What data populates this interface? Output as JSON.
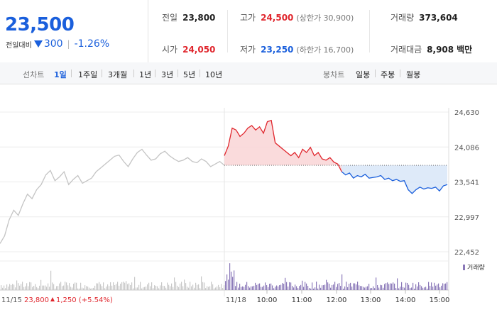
{
  "price": {
    "current": "23,500",
    "change_label": "전일대비",
    "change_amount": "300",
    "change_percent": "-1.26%",
    "direction": "down"
  },
  "stats": {
    "prev_close": {
      "label": "전일",
      "value": "23,800"
    },
    "high": {
      "label": "고가",
      "value": "24,500",
      "sub": "(상한가 30,900)"
    },
    "volume": {
      "label": "거래량",
      "value": "373,604"
    },
    "open": {
      "label": "시가",
      "value": "24,050"
    },
    "low": {
      "label": "저가",
      "value": "23,250",
      "sub": "(하한가 16,700)"
    },
    "trade_amount": {
      "label": "거래대금",
      "value": "8,908",
      "unit": "백만"
    }
  },
  "toolbar": {
    "line_chart_label": "선차트",
    "line_periods": [
      "1일",
      "1주일",
      "3개월",
      "1년",
      "3년",
      "5년",
      "10년"
    ],
    "active_period": "1일",
    "candle_chart_label": "봉차트",
    "candle_periods": [
      "일봉",
      "주봉",
      "월봉"
    ]
  },
  "colors": {
    "up": "#e0262d",
    "down": "#1a5fdc",
    "prev_day": "#c4c4c4",
    "volume_today": "#8a78b8",
    "volume_prev": "#c8c8c8"
  },
  "chart_data": {
    "type": "line",
    "y_ticks": [
      "24,630",
      "24,086",
      "23,541",
      "22,997",
      "22,452"
    ],
    "ylim": [
      22452,
      24630
    ],
    "prev_day_label": "11/15",
    "prev_day_close_text": "23,800",
    "prev_day_change_text": "1,250",
    "prev_day_change_pct": "(+5.54%)",
    "today_label": "11/18",
    "x_ticks": [
      "10:00",
      "11:00",
      "12:00",
      "13:00",
      "14:00",
      "15:00"
    ],
    "baseline_value": 23800,
    "volume_legend": "거래량",
    "series": [
      {
        "day": "11/15",
        "values": [
          22580,
          22700,
          22950,
          23100,
          23020,
          23200,
          23350,
          23280,
          23420,
          23500,
          23650,
          23720,
          23560,
          23620,
          23700,
          23500,
          23580,
          23640,
          23520,
          23560,
          23600,
          23700,
          23760,
          23820,
          23880,
          23940,
          23960,
          23860,
          23780,
          23900,
          24000,
          24050,
          23960,
          23880,
          23900,
          23980,
          24020,
          23950,
          23900,
          23860,
          23880,
          23920,
          23860,
          23840,
          23900,
          23860,
          23780,
          23820,
          23860,
          23800
        ]
      },
      {
        "day": "11/18",
        "values": [
          23950,
          24100,
          24380,
          24350,
          24250,
          24300,
          24380,
          24420,
          24350,
          24400,
          24300,
          24480,
          24500,
          24150,
          24100,
          24050,
          24000,
          23950,
          24000,
          23920,
          24050,
          24000,
          24080,
          23950,
          24000,
          23900,
          23880,
          23920,
          23850,
          23820,
          23700,
          23650,
          23680,
          23600,
          23640,
          23620,
          23660,
          23600,
          23610,
          23620,
          23640,
          23580,
          23600,
          23560,
          23580,
          23550,
          23560,
          23420,
          23360,
          23420,
          23460,
          23430,
          23450,
          23440,
          23460,
          23400,
          23480,
          23500
        ]
      }
    ]
  }
}
